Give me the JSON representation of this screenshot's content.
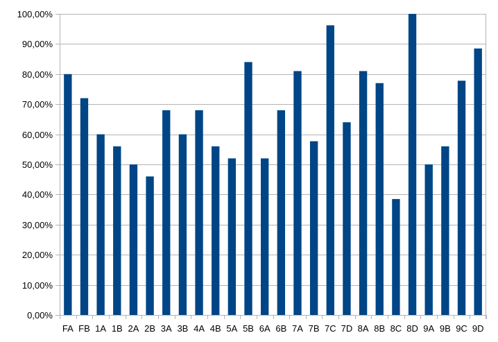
{
  "chart_data": {
    "type": "bar",
    "title": "",
    "xlabel": "",
    "ylabel": "",
    "ylim": [
      0,
      100
    ],
    "y_tick_values": [
      0,
      10,
      20,
      30,
      40,
      50,
      60,
      70,
      80,
      90,
      100
    ],
    "y_tick_labels": [
      "0,00%",
      "10,00%",
      "20,00%",
      "30,00%",
      "40,00%",
      "50,00%",
      "60,00%",
      "70,00%",
      "80,00%",
      "90,00%",
      "100,00%"
    ],
    "categories": [
      "FA",
      "FB",
      "1A",
      "1B",
      "2A",
      "2B",
      "3A",
      "3B",
      "4A",
      "4B",
      "5A",
      "5B",
      "6A",
      "6B",
      "7A",
      "7B",
      "7C",
      "7D",
      "8A",
      "8B",
      "8C",
      "8D",
      "9A",
      "9B",
      "9C",
      "9D"
    ],
    "values": [
      80,
      72,
      60,
      56,
      50,
      46,
      68,
      60,
      68,
      56,
      52,
      84,
      52,
      68,
      81,
      57.7,
      96.2,
      64,
      81,
      77,
      38.5,
      100,
      50,
      56,
      77.8,
      88.5
    ],
    "grid": true,
    "legend": "none",
    "colors": {
      "bar": "#004586",
      "grid": "#b3b3b3",
      "text": "#000000"
    }
  }
}
